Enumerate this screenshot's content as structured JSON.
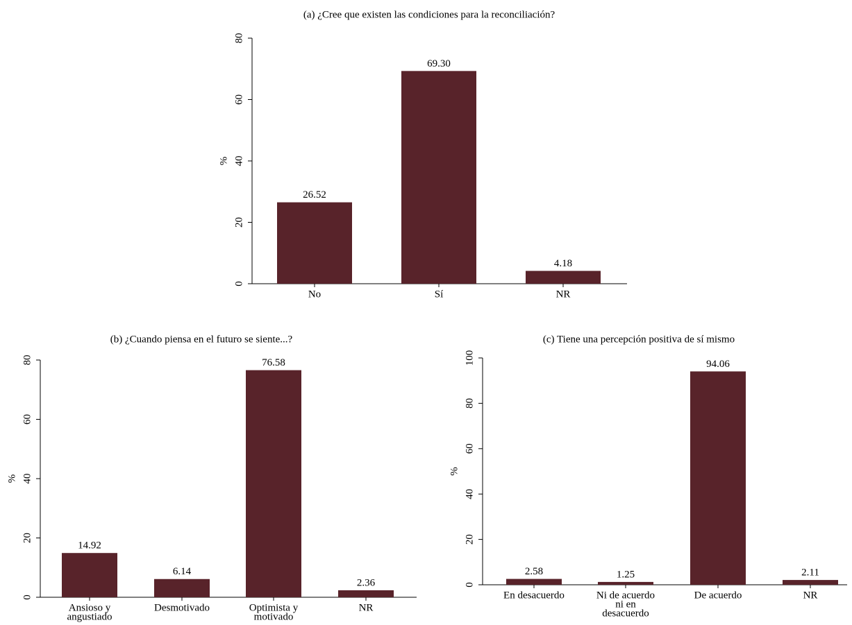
{
  "chart_data": [
    {
      "type": "bar",
      "title": "(a)  ¿Cree que existen las condiciones para la reconciliación?",
      "ylabel": "%",
      "categories": [
        [
          "No"
        ],
        [
          "Sí"
        ],
        [
          "NR"
        ]
      ],
      "values": [
        26.52,
        69.3,
        4.18
      ],
      "value_labels": [
        "26.52",
        "69.30",
        "4.18"
      ],
      "color": "#58232a",
      "ylim": [
        0,
        80
      ],
      "yticks": [
        0,
        20,
        40,
        60,
        80
      ]
    },
    {
      "type": "bar",
      "title": "(b)  ¿Cuando piensa en el futuro se siente...?",
      "ylabel": "%",
      "categories": [
        [
          "Ansioso y",
          "angustiado"
        ],
        [
          "Desmotivado"
        ],
        [
          "Optimista y",
          "motivado"
        ],
        [
          "NR"
        ]
      ],
      "values": [
        14.92,
        6.14,
        76.58,
        2.36
      ],
      "value_labels": [
        "14.92",
        "6.14",
        "76.58",
        "2.36"
      ],
      "color": "#58232a",
      "ylim": [
        0,
        80
      ],
      "yticks": [
        0,
        20,
        40,
        60,
        80
      ]
    },
    {
      "type": "bar",
      "title": "(c)  Tiene una percepción positiva de sí mismo",
      "ylabel": "%",
      "categories": [
        [
          "En desacuerdo"
        ],
        [
          "Ni de acuerdo",
          "ni en",
          "desacuerdo"
        ],
        [
          "De acuerdo"
        ],
        [
          "NR"
        ]
      ],
      "values": [
        2.58,
        1.25,
        94.06,
        2.11
      ],
      "value_labels": [
        "2.58",
        "1.25",
        "94.06",
        "2.11"
      ],
      "color": "#58232a",
      "ylim": [
        0,
        100
      ],
      "yticks": [
        0,
        20,
        40,
        60,
        80,
        100
      ]
    }
  ]
}
